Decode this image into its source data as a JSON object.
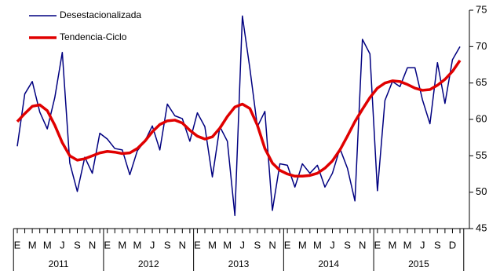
{
  "chart_data": {
    "type": "line",
    "categories": [
      "E",
      null,
      "M",
      null,
      "M",
      null,
      "J",
      null,
      "S",
      null,
      "N",
      null,
      "E",
      null,
      "M",
      null,
      "M",
      null,
      "J",
      null,
      "S",
      null,
      "N",
      null,
      "E",
      null,
      "M",
      null,
      "M",
      null,
      "J",
      null,
      "S",
      null,
      "N",
      null,
      "E",
      null,
      "M",
      null,
      "M",
      null,
      "J",
      null,
      "S",
      null,
      "N",
      null,
      "E",
      null,
      "M",
      null,
      "M",
      null,
      "J",
      null,
      "S",
      null,
      "D",
      null
    ],
    "years": [
      "2011",
      "2012",
      "2013",
      "2014",
      "2015"
    ],
    "series": [
      {
        "name": "Desestacionalizada",
        "color": "#000080",
        "width": 1.5,
        "values": [
          56.3,
          63.5,
          65.2,
          61,
          58.7,
          63,
          69.2,
          54,
          50.1,
          54.8,
          52.6,
          58.1,
          57.3,
          56,
          55.8,
          52.4,
          55.7,
          57,
          59.1,
          55.8,
          62.1,
          60.5,
          60.1,
          57,
          60.9,
          59,
          52.1,
          59,
          57,
          46.8,
          74.2,
          67,
          59,
          61.1,
          47.5,
          53.9,
          53.7,
          50.7,
          53.9,
          52.6,
          53.7,
          50.7,
          52.6,
          56,
          53.3,
          48.8,
          71,
          69,
          50.2,
          62.6,
          65.2,
          64.5,
          67.1,
          67.1,
          62.7,
          59.4,
          67.8,
          62.2,
          68.2,
          70
        ]
      },
      {
        "name": "Tendencia-Ciclo",
        "color": "#e00000",
        "width": 3.5,
        "values": [
          59.7,
          60.8,
          61.8,
          62,
          61.2,
          59.2,
          56.8,
          55,
          54.4,
          54.6,
          55,
          55.4,
          55.6,
          55.5,
          55.3,
          55.4,
          56,
          57,
          58.3,
          59.3,
          59.8,
          59.9,
          59.5,
          58.5,
          57.7,
          57.3,
          57.6,
          58.8,
          60.4,
          61.7,
          62.1,
          61.5,
          59.2,
          56,
          54,
          53,
          52.5,
          52.2,
          52.2,
          52.3,
          52.6,
          53.3,
          54.3,
          55.8,
          57.7,
          59.7,
          61.4,
          63,
          64.3,
          65,
          65.3,
          65.2,
          64.8,
          64.3,
          64,
          64.1,
          64.7,
          65.5,
          66.6,
          68.1
        ]
      }
    ],
    "ylim": [
      45,
      75
    ],
    "yticks": [
      45,
      50,
      55,
      60,
      65,
      70,
      75
    ],
    "grid": false
  }
}
